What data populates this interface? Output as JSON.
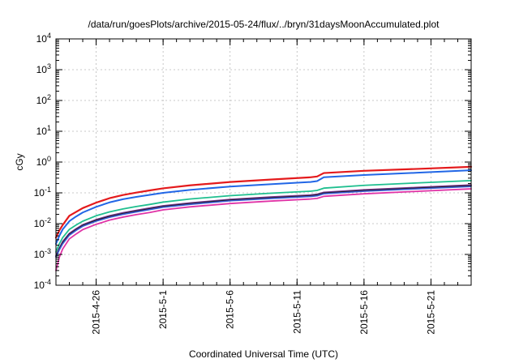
{
  "chart_data": {
    "type": "line",
    "title": "/data/run/goesPlots/archive/2015-05-24/flux/../bryn/31daysMoonAccumulated.plot",
    "xlabel": "Coordinated Universal Time (UTC)",
    "ylabel": "cGy",
    "y_scale": "log",
    "xlim": [
      "2015-04-23",
      "2015-05-24"
    ],
    "ylim": [
      0.0001,
      10000
    ],
    "x_ticks": [
      "2015-4-26",
      "2015-5-1",
      "2015-5-6",
      "2015-5-11",
      "2015-5-16",
      "2015-5-21"
    ],
    "y_ticks": [
      {
        "value": 0.0001,
        "mantissa": "10",
        "exp": "-4"
      },
      {
        "value": 0.001,
        "mantissa": "10",
        "exp": "-3"
      },
      {
        "value": 0.01,
        "mantissa": "10",
        "exp": "-2"
      },
      {
        "value": 0.1,
        "mantissa": "10",
        "exp": "-1"
      },
      {
        "value": 1,
        "mantissa": "10",
        "exp": "0"
      },
      {
        "value": 10,
        "mantissa": "10",
        "exp": "1"
      },
      {
        "value": 100,
        "mantissa": "10",
        "exp": "2"
      },
      {
        "value": 1000,
        "mantissa": "10",
        "exp": "3"
      },
      {
        "value": 10000,
        "mantissa": "10",
        "exp": "4"
      }
    ],
    "grid": true,
    "legend": "none",
    "x": [
      "2015-04-23",
      "2015-04-23 06:00",
      "2015-04-23 12:00",
      "2015-04-24",
      "2015-04-24 12:00",
      "2015-04-25",
      "2015-04-26",
      "2015-04-27",
      "2015-04-28",
      "2015-04-29",
      "2015-04-30",
      "2015-05-01",
      "2015-05-03",
      "2015-05-06",
      "2015-05-09",
      "2015-05-12",
      "2015-05-12 12:00",
      "2015-05-13",
      "2015-05-16",
      "2015-05-20",
      "2015-05-24"
    ],
    "series": [
      {
        "color": "#e41a1c",
        "width": 2.2,
        "values": [
          0.0035,
          0.006,
          0.009,
          0.018,
          0.024,
          0.032,
          0.048,
          0.067,
          0.085,
          0.102,
          0.12,
          0.14,
          0.175,
          0.225,
          0.27,
          0.32,
          0.34,
          0.44,
          0.52,
          0.6,
          0.7
        ]
      },
      {
        "color": "#2166e6",
        "width": 2.0,
        "values": [
          0.0022,
          0.004,
          0.0065,
          0.012,
          0.017,
          0.023,
          0.035,
          0.049,
          0.062,
          0.074,
          0.086,
          0.1,
          0.125,
          0.16,
          0.19,
          0.225,
          0.24,
          0.32,
          0.38,
          0.45,
          0.54
        ]
      },
      {
        "color": "#1fbf8f",
        "width": 1.8,
        "values": [
          0.0012,
          0.0022,
          0.0035,
          0.0065,
          0.009,
          0.012,
          0.018,
          0.024,
          0.03,
          0.036,
          0.042,
          0.05,
          0.063,
          0.081,
          0.097,
          0.113,
          0.12,
          0.142,
          0.175,
          0.21,
          0.25
        ]
      },
      {
        "color": "#7b3294",
        "width": 1.8,
        "values": [
          0.0009,
          0.0016,
          0.0026,
          0.0048,
          0.0068,
          0.0092,
          0.0135,
          0.018,
          0.0225,
          0.027,
          0.032,
          0.038,
          0.047,
          0.061,
          0.073,
          0.085,
          0.09,
          0.104,
          0.125,
          0.15,
          0.18
        ]
      },
      {
        "color": "#1f1f1f",
        "width": 1.6,
        "values": [
          0.00085,
          0.0015,
          0.0024,
          0.0045,
          0.0064,
          0.0087,
          0.0128,
          0.017,
          0.0212,
          0.0255,
          0.0302,
          0.036,
          0.0445,
          0.058,
          0.069,
          0.08,
          0.085,
          0.098,
          0.118,
          0.142,
          0.17
        ]
      },
      {
        "color": "#3b5bd6",
        "width": 1.6,
        "values": [
          0.0008,
          0.0014,
          0.0022,
          0.0042,
          0.006,
          0.0082,
          0.012,
          0.016,
          0.02,
          0.024,
          0.0285,
          0.034,
          0.042,
          0.055,
          0.065,
          0.076,
          0.08,
          0.093,
          0.112,
          0.135,
          0.16
        ]
      },
      {
        "color": "#e033a6",
        "width": 1.8,
        "values": [
          0.0003,
          0.0008,
          0.0015,
          0.0032,
          0.0046,
          0.0064,
          0.0095,
          0.013,
          0.0163,
          0.0196,
          0.023,
          0.028,
          0.035,
          0.045,
          0.054,
          0.063,
          0.066,
          0.077,
          0.093,
          0.112,
          0.135
        ]
      }
    ]
  }
}
